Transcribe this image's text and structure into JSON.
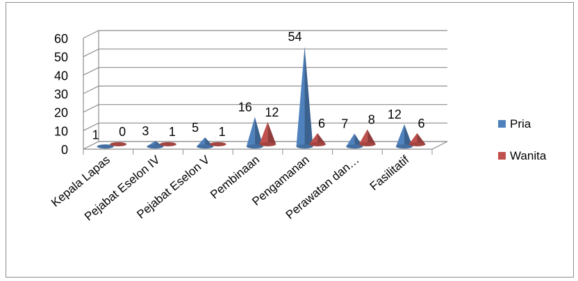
{
  "chart_data": {
    "type": "bar",
    "subtype": "3d-cone",
    "categories": [
      "Kepala Lapas",
      "Pejabat Eselon IV",
      "Pejabat Eselon V",
      "Pembinaan",
      "Pengamanan",
      "Perawatan dan…",
      "Fasilitatif"
    ],
    "series": [
      {
        "name": "Pria",
        "values": [
          1,
          3,
          5,
          16,
          54,
          7,
          12
        ],
        "color": "#4f81bd"
      },
      {
        "name": "Wanita",
        "values": [
          0,
          1,
          1,
          12,
          6,
          8,
          6
        ],
        "color": "#c0504d"
      }
    ],
    "y_ticks": [
      "0",
      "10",
      "20",
      "30",
      "40",
      "50",
      "60"
    ],
    "ylim": [
      0,
      60
    ],
    "grid": true,
    "legend": "right",
    "data_labels": true
  }
}
